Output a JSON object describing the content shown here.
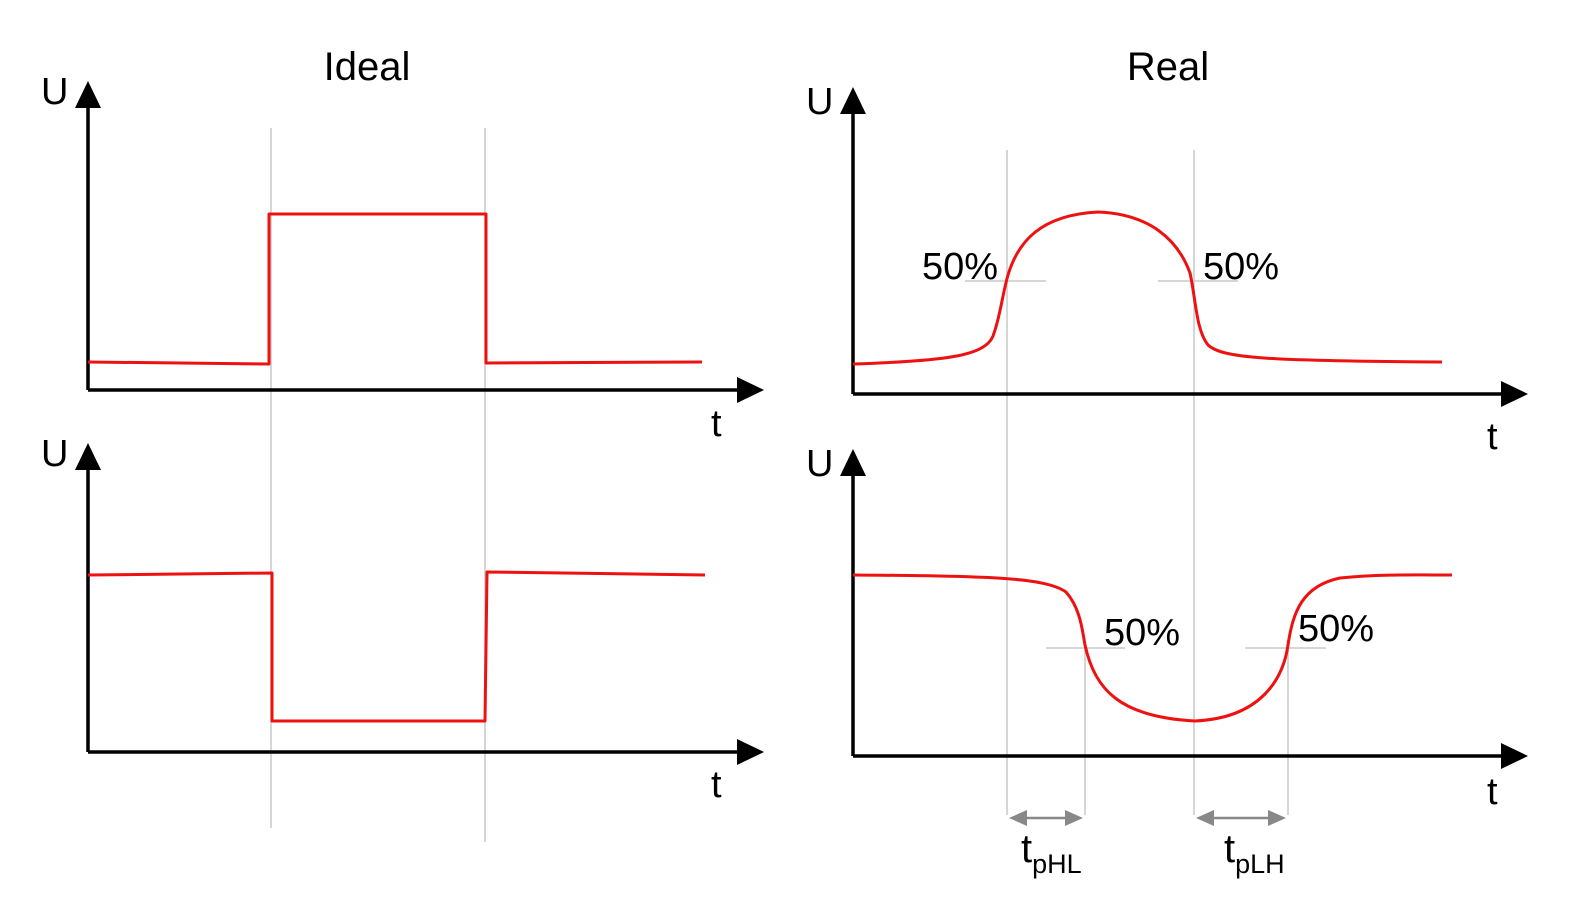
{
  "titles": {
    "ideal": "Ideal",
    "real": "Real"
  },
  "axis_labels": {
    "voltage": "U",
    "time": "t"
  },
  "threshold_label": "50%",
  "timing_labels": {
    "high_to_low": {
      "base": "t",
      "sub": "pHL"
    },
    "low_to_high": {
      "base": "t",
      "sub": "pLH"
    }
  },
  "colors": {
    "signal": "#ee1111",
    "axis": "#000000",
    "guide": "#c8c8c8",
    "dimension": "#888888"
  }
}
